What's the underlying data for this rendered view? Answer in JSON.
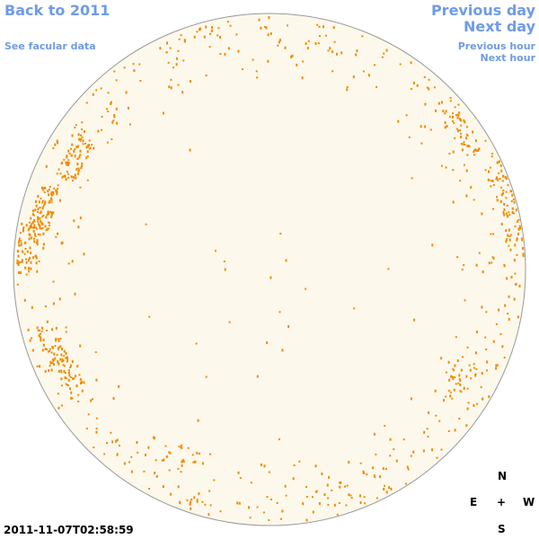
{
  "nav": {
    "back": "Back to 2011",
    "facular": "See facular data",
    "prev_day": "Previous day",
    "next_day": "Next day",
    "prev_hour": "Previous hour",
    "next_hour": "Next hour"
  },
  "timestamp": "2011-11-07T02:58:59",
  "compass": {
    "north": "N",
    "east": "E",
    "center": "+",
    "west": "W",
    "south": "S"
  }
}
